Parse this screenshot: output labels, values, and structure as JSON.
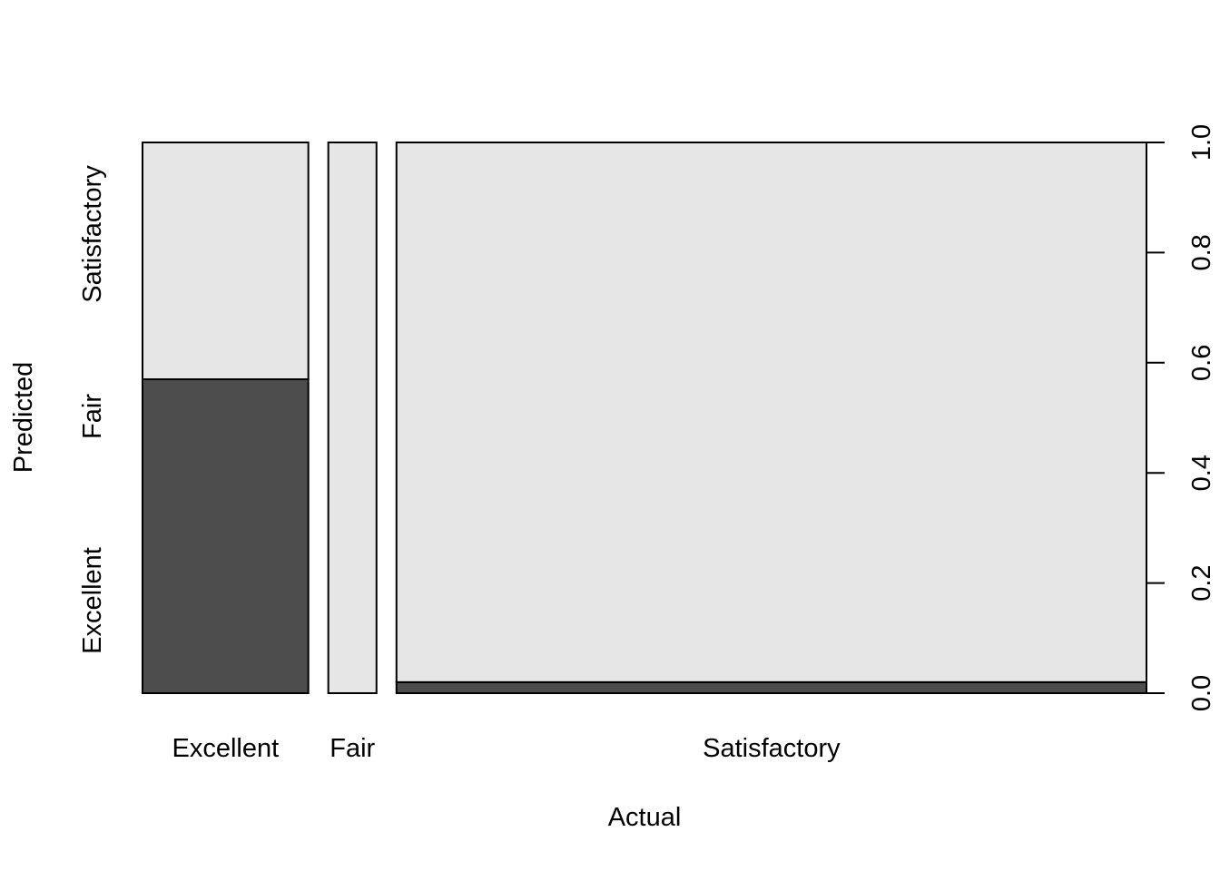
{
  "chart_data": {
    "type": "mosaic",
    "xlabel": "Actual",
    "ylabel": "Predicted",
    "x_categories": [
      "Excellent",
      "Fair",
      "Satisfactory"
    ],
    "y_categories": [
      "Excellent",
      "Fair",
      "Satisfactory"
    ],
    "column_widths": [
      0.172,
      0.05,
      0.778
    ],
    "columns": [
      {
        "actual": "Excellent",
        "segments": [
          {
            "predicted": "Excellent",
            "proportion": 0.57
          },
          {
            "predicted": "Fair",
            "proportion": 0.0
          },
          {
            "predicted": "Satisfactory",
            "proportion": 0.43
          }
        ]
      },
      {
        "actual": "Fair",
        "segments": [
          {
            "predicted": "Excellent",
            "proportion": 0.0
          },
          {
            "predicted": "Fair",
            "proportion": 0.0
          },
          {
            "predicted": "Satisfactory",
            "proportion": 1.0
          }
        ]
      },
      {
        "actual": "Satisfactory",
        "segments": [
          {
            "predicted": "Excellent",
            "proportion": 0.02
          },
          {
            "predicted": "Fair",
            "proportion": 0.0
          },
          {
            "predicted": "Satisfactory",
            "proportion": 0.98
          }
        ]
      }
    ],
    "right_axis": {
      "ticks": [
        "0.0",
        "0.2",
        "0.4",
        "0.6",
        "0.8",
        "1.0"
      ],
      "range": [
        0,
        1
      ]
    },
    "colors": {
      "Excellent": "#4d4d4d",
      "Fair": "#999999",
      "Satisfactory": "#e6e6e6"
    }
  }
}
